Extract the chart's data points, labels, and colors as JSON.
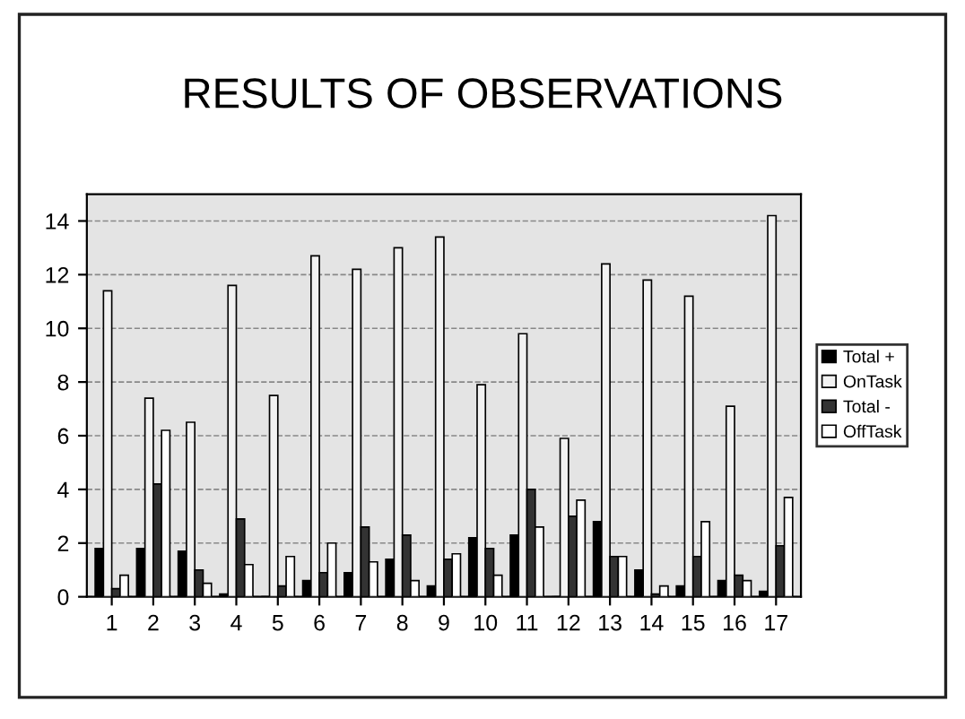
{
  "chart_data": {
    "type": "bar",
    "title": "RESULTS OF OBSERVATIONS",
    "categories": [
      "1",
      "2",
      "3",
      "4",
      "5",
      "6",
      "7",
      "8",
      "9",
      "10",
      "11",
      "12",
      "13",
      "14",
      "15",
      "16",
      "17"
    ],
    "series": [
      {
        "name": "Total +",
        "color": "#000000",
        "values": [
          1.8,
          1.8,
          1.7,
          0.1,
          0,
          0.6,
          0.9,
          1.4,
          0.4,
          2.2,
          2.3,
          0,
          2.8,
          1.0,
          0.4,
          0.6,
          0.2
        ]
      },
      {
        "name": "OnTask",
        "color": "#f2f2f2",
        "values": [
          11.4,
          7.4,
          6.5,
          11.6,
          7.5,
          12.7,
          12.2,
          13.0,
          13.4,
          7.9,
          9.8,
          5.9,
          12.4,
          11.8,
          11.2,
          7.1,
          14.2
        ]
      },
      {
        "name": "Total -",
        "color": "#333333",
        "values": [
          0.3,
          4.2,
          1.0,
          2.9,
          0.4,
          0.9,
          2.6,
          2.3,
          1.4,
          1.8,
          4.0,
          3.0,
          1.5,
          0.1,
          1.5,
          0.8,
          1.9
        ]
      },
      {
        "name": "OffTask",
        "color": "#ffffff",
        "values": [
          0.8,
          6.2,
          0.5,
          1.2,
          1.5,
          2.0,
          1.3,
          0.6,
          1.6,
          0.8,
          2.6,
          3.6,
          1.5,
          0.4,
          2.8,
          0.6,
          3.7
        ]
      }
    ],
    "ylim": [
      0,
      15
    ],
    "yticks": [
      0,
      2,
      4,
      6,
      8,
      10,
      12,
      14
    ],
    "grid": "y",
    "legend": "right"
  }
}
